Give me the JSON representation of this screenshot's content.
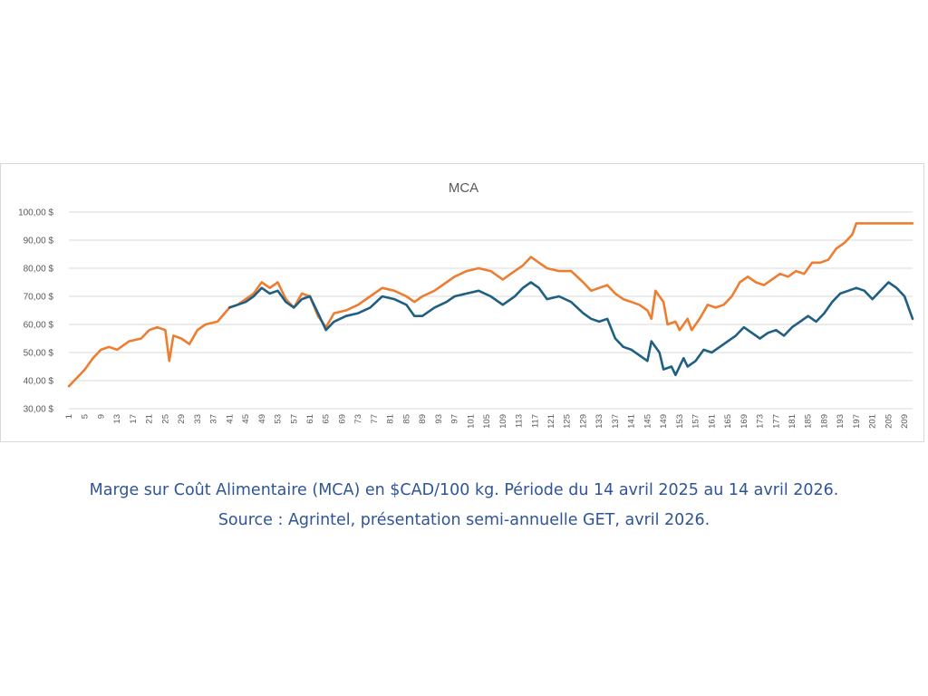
{
  "chart_data": {
    "type": "line",
    "title": "MCA",
    "xlabel": "",
    "ylabel": "",
    "ylim": [
      30,
      100
    ],
    "yticks": [
      "30,00 $",
      "40,00 $",
      "50,00 $",
      "60,00 $",
      "70,00 $",
      "80,00 $",
      "90,00 $",
      "100,00 $"
    ],
    "x_range": [
      1,
      211
    ],
    "xtick_step": 4,
    "grid": "horizontal",
    "legend": "none",
    "series": [
      {
        "color": "#ed7d31",
        "points": [
          [
            1,
            38
          ],
          [
            3,
            41
          ],
          [
            5,
            44
          ],
          [
            7,
            48
          ],
          [
            9,
            51
          ],
          [
            11,
            52
          ],
          [
            13,
            51
          ],
          [
            16,
            54
          ],
          [
            19,
            55
          ],
          [
            21,
            58
          ],
          [
            23,
            59
          ],
          [
            25,
            58
          ],
          [
            26,
            47
          ],
          [
            27,
            56
          ],
          [
            29,
            55
          ],
          [
            31,
            53
          ],
          [
            33,
            58
          ],
          [
            35,
            60
          ],
          [
            38,
            61
          ],
          [
            41,
            66
          ],
          [
            43,
            67
          ],
          [
            45,
            69
          ],
          [
            47,
            71
          ],
          [
            49,
            75
          ],
          [
            51,
            73
          ],
          [
            53,
            75
          ],
          [
            55,
            69
          ],
          [
            57,
            66
          ],
          [
            59,
            71
          ],
          [
            61,
            70
          ],
          [
            63,
            63
          ],
          [
            65,
            59
          ],
          [
            67,
            64
          ],
          [
            70,
            65
          ],
          [
            73,
            67
          ],
          [
            76,
            70
          ],
          [
            79,
            73
          ],
          [
            82,
            72
          ],
          [
            85,
            70
          ],
          [
            87,
            68
          ],
          [
            89,
            70
          ],
          [
            92,
            72
          ],
          [
            95,
            75
          ],
          [
            97,
            77
          ],
          [
            100,
            79
          ],
          [
            103,
            80
          ],
          [
            106,
            79
          ],
          [
            109,
            76
          ],
          [
            112,
            79
          ],
          [
            114,
            81
          ],
          [
            116,
            84
          ],
          [
            118,
            82
          ],
          [
            120,
            80
          ],
          [
            123,
            79
          ],
          [
            126,
            79
          ],
          [
            129,
            75
          ],
          [
            131,
            72
          ],
          [
            133,
            73
          ],
          [
            135,
            74
          ],
          [
            137,
            71
          ],
          [
            139,
            69
          ],
          [
            141,
            68
          ],
          [
            143,
            67
          ],
          [
            145,
            65
          ],
          [
            146,
            62
          ],
          [
            147,
            72
          ],
          [
            149,
            68
          ],
          [
            150,
            60
          ],
          [
            152,
            61
          ],
          [
            153,
            58
          ],
          [
            155,
            62
          ],
          [
            156,
            58
          ],
          [
            158,
            62
          ],
          [
            160,
            67
          ],
          [
            162,
            66
          ],
          [
            164,
            67
          ],
          [
            166,
            70
          ],
          [
            168,
            75
          ],
          [
            170,
            77
          ],
          [
            172,
            75
          ],
          [
            174,
            74
          ],
          [
            176,
            76
          ],
          [
            178,
            78
          ],
          [
            180,
            77
          ],
          [
            182,
            79
          ],
          [
            184,
            78
          ],
          [
            186,
            82
          ],
          [
            188,
            82
          ],
          [
            190,
            83
          ],
          [
            192,
            87
          ],
          [
            194,
            89
          ],
          [
            196,
            92
          ],
          [
            197,
            96
          ],
          [
            199,
            96
          ],
          [
            201,
            96
          ],
          [
            203,
            96
          ],
          [
            205,
            96
          ],
          [
            207,
            96
          ],
          [
            209,
            96
          ],
          [
            211,
            96
          ]
        ]
      },
      {
        "color": "#1f6082",
        "points": [
          [
            41,
            66
          ],
          [
            43,
            67
          ],
          [
            45,
            68
          ],
          [
            47,
            70
          ],
          [
            49,
            73
          ],
          [
            51,
            71
          ],
          [
            53,
            72
          ],
          [
            55,
            68
          ],
          [
            57,
            66
          ],
          [
            59,
            69
          ],
          [
            61,
            70
          ],
          [
            63,
            64
          ],
          [
            65,
            58
          ],
          [
            67,
            61
          ],
          [
            70,
            63
          ],
          [
            73,
            64
          ],
          [
            76,
            66
          ],
          [
            79,
            70
          ],
          [
            82,
            69
          ],
          [
            85,
            67
          ],
          [
            87,
            63
          ],
          [
            89,
            63
          ],
          [
            92,
            66
          ],
          [
            95,
            68
          ],
          [
            97,
            70
          ],
          [
            100,
            71
          ],
          [
            103,
            72
          ],
          [
            106,
            70
          ],
          [
            109,
            67
          ],
          [
            112,
            70
          ],
          [
            114,
            73
          ],
          [
            116,
            75
          ],
          [
            118,
            73
          ],
          [
            120,
            69
          ],
          [
            123,
            70
          ],
          [
            126,
            68
          ],
          [
            129,
            64
          ],
          [
            131,
            62
          ],
          [
            133,
            61
          ],
          [
            135,
            62
          ],
          [
            137,
            55
          ],
          [
            139,
            52
          ],
          [
            141,
            51
          ],
          [
            143,
            49
          ],
          [
            145,
            47
          ],
          [
            146,
            54
          ],
          [
            148,
            50
          ],
          [
            149,
            44
          ],
          [
            151,
            45
          ],
          [
            152,
            42
          ],
          [
            154,
            48
          ],
          [
            155,
            45
          ],
          [
            157,
            47
          ],
          [
            159,
            51
          ],
          [
            161,
            50
          ],
          [
            163,
            52
          ],
          [
            165,
            54
          ],
          [
            167,
            56
          ],
          [
            169,
            59
          ],
          [
            171,
            57
          ],
          [
            173,
            55
          ],
          [
            175,
            57
          ],
          [
            177,
            58
          ],
          [
            179,
            56
          ],
          [
            181,
            59
          ],
          [
            183,
            61
          ],
          [
            185,
            63
          ],
          [
            187,
            61
          ],
          [
            189,
            64
          ],
          [
            191,
            68
          ],
          [
            193,
            71
          ],
          [
            195,
            72
          ],
          [
            197,
            73
          ],
          [
            199,
            72
          ],
          [
            201,
            69
          ],
          [
            203,
            72
          ],
          [
            205,
            75
          ],
          [
            207,
            73
          ],
          [
            209,
            70
          ],
          [
            211,
            62
          ]
        ]
      }
    ]
  },
  "caption": {
    "line1": "Marge sur Coût Alimentaire (MCA) en $CAD/100 kg. Période du 14 avril 2025 au 14 avril 2026.",
    "line2": "Source : Agrintel, présentation semi-annuelle GET, avril 2026."
  }
}
